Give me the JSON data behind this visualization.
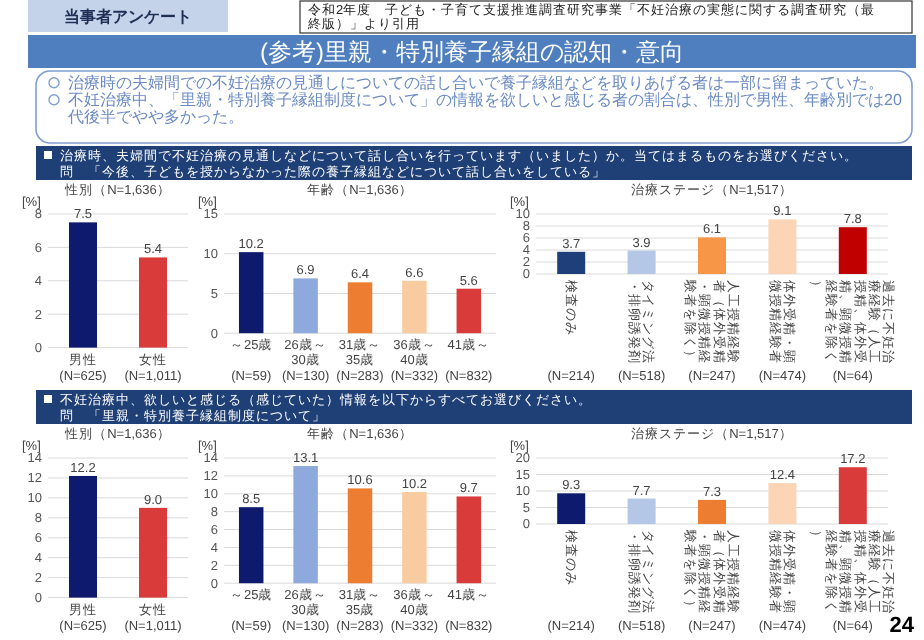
{
  "chart_data": [
    {
      "type": "other",
      "title": "(参考)里親・特別養子縁組の認知・意向",
      "annotations": [
        "当事者アンケート",
        "令和2年度　子ども・子育て支援推進調査研究事業「不妊治療の実態に関する調査研究（最終版）」より引用",
        "治療時の夫婦間での不妊治療の見通しについての話し合いで養子縁組などを取りあげる者は一部に留まっていた。",
        "不妊治療中、「里親・特別養子縁組制度について」の情報を欲しいと感じる者の割合は、性別で男性、年齢別では20代後半でやや多かった。",
        "治療時、夫婦間で不妊治療の見通しなどについて話し合いを行っています（いました）か。当てはまるものをお選びください。",
        "問　「今後、子どもを授からなかった際の養子縁組などについて話し合いをしている」",
        "不妊治療中、欲しいと感じる（感じていた）情報を以下からすべてお選びください。",
        "問　「里親・特別養子縁組制度について」",
        "24"
      ]
    },
    {
      "type": "bar",
      "title": "性別（N=1,636）",
      "ylabel": "[%]",
      "categories": [
        "男性",
        "女性"
      ],
      "values": [
        7.5,
        5.4
      ],
      "colors": [
        "#0d1a6e",
        "#d93a3a"
      ],
      "value_labels": [
        "7.5",
        "5.4"
      ],
      "ylim": [
        0,
        8
      ],
      "yticks": [
        0,
        2,
        4,
        6,
        8
      ],
      "grid": "y",
      "annotations": [
        "(N=625)",
        "(N=1,011)"
      ]
    },
    {
      "type": "bar",
      "title": "年齢（N=1,636）",
      "ylabel": "[%]",
      "categories": [
        "～25歳",
        "26歳～30歳",
        "31歳～35歳",
        "36歳～40歳",
        "41歳～"
      ],
      "values": [
        10.2,
        6.9,
        6.4,
        6.6,
        5.6
      ],
      "colors": [
        "#0d1a6e",
        "#8ea9db",
        "#ed7d31",
        "#f8cba0",
        "#d93a3a"
      ],
      "value_labels": [
        "10.2",
        "6.9",
        "6.4",
        "6.6",
        "5.6"
      ],
      "ylim": [
        0,
        15
      ],
      "yticks": [
        0,
        5,
        10,
        15
      ],
      "grid": "y",
      "annotations": [
        "(N=59)",
        "(N=130)",
        "(N=283)",
        "(N=332)",
        "(N=832)"
      ]
    },
    {
      "type": "bar",
      "title": "治療ステージ（N=1,517）",
      "ylabel": "[%]",
      "categories": [
        "検査のみ",
        "タイミング法・排卵誘発剤",
        "人工授精経験者（体外受精・顕微授精経験者を除く）",
        "体外受精・顕微授精経験者",
        "過去に不妊治療経験（人工授精、体外受精、顕微授精経験者を除く）"
      ],
      "values": [
        3.7,
        3.9,
        6.1,
        9.1,
        7.8
      ],
      "colors": [
        "#1f3f7a",
        "#b4c7e7",
        "#f79646",
        "#fbd5b5",
        "#c00000"
      ],
      "value_labels": [
        "3.7",
        "3.9",
        "6.1",
        "9.1",
        "7.8"
      ],
      "ylim": [
        0,
        10
      ],
      "yticks": [
        0,
        2,
        4,
        6,
        8,
        10
      ],
      "grid": "y",
      "annotations": [
        "(N=214)",
        "(N=518)",
        "(N=247)",
        "(N=474)",
        "(N=64)"
      ]
    },
    {
      "type": "bar",
      "title": "性別（N=1,636）",
      "ylabel": "[%]",
      "categories": [
        "男性",
        "女性"
      ],
      "values": [
        12.2,
        9.0
      ],
      "colors": [
        "#0d1a6e",
        "#d93a3a"
      ],
      "value_labels": [
        "12.2",
        "9.0"
      ],
      "ylim": [
        0,
        14
      ],
      "yticks": [
        0,
        2,
        4,
        6,
        8,
        10,
        12,
        14
      ],
      "grid": "y",
      "annotations": [
        "(N=625)",
        "(N=1,011)"
      ]
    },
    {
      "type": "bar",
      "title": "年齢（N=1,636）",
      "ylabel": "[%]",
      "categories": [
        "～25歳",
        "26歳～30歳",
        "31歳～35歳",
        "36歳～40歳",
        "41歳～"
      ],
      "values": [
        8.5,
        13.1,
        10.6,
        10.2,
        9.7
      ],
      "colors": [
        "#0d1a6e",
        "#8ea9db",
        "#ed7d31",
        "#f8cba0",
        "#d93a3a"
      ],
      "value_labels": [
        "8.5",
        "13.1",
        "10.6",
        "10.2",
        "9.7"
      ],
      "ylim": [
        0,
        14
      ],
      "yticks": [
        0,
        2,
        4,
        6,
        8,
        10,
        12,
        14
      ],
      "grid": "y",
      "annotations": [
        "(N=59)",
        "(N=130)",
        "(N=283)",
        "(N=332)",
        "(N=832)"
      ]
    },
    {
      "type": "bar",
      "title": "治療ステージ（N=1,517）",
      "ylabel": "[%]",
      "categories": [
        "検査のみ",
        "タイミング法・排卵誘発剤",
        "人工授精経験者（体外受精・顕微授精経験者を除く）",
        "体外受精・顕微授精経験者",
        "過去に不妊治療経験（人工授精、体外受精、顕微授精経験者を除く）"
      ],
      "values": [
        9.3,
        7.7,
        7.3,
        12.4,
        17.2
      ],
      "colors": [
        "#0d1a6e",
        "#b4c7e7",
        "#ed7d31",
        "#fbd5b5",
        "#d93a3a"
      ],
      "value_labels": [
        "9.3",
        "7.7",
        "7.3",
        "12.4",
        "17.2"
      ],
      "ylim": [
        0,
        20
      ],
      "yticks": [
        0,
        5,
        10,
        15,
        20
      ],
      "grid": "y",
      "annotations": [
        "(N=214)",
        "(N=518)",
        "(N=247)",
        "(N=474)",
        "(N=64)"
      ]
    }
  ]
}
